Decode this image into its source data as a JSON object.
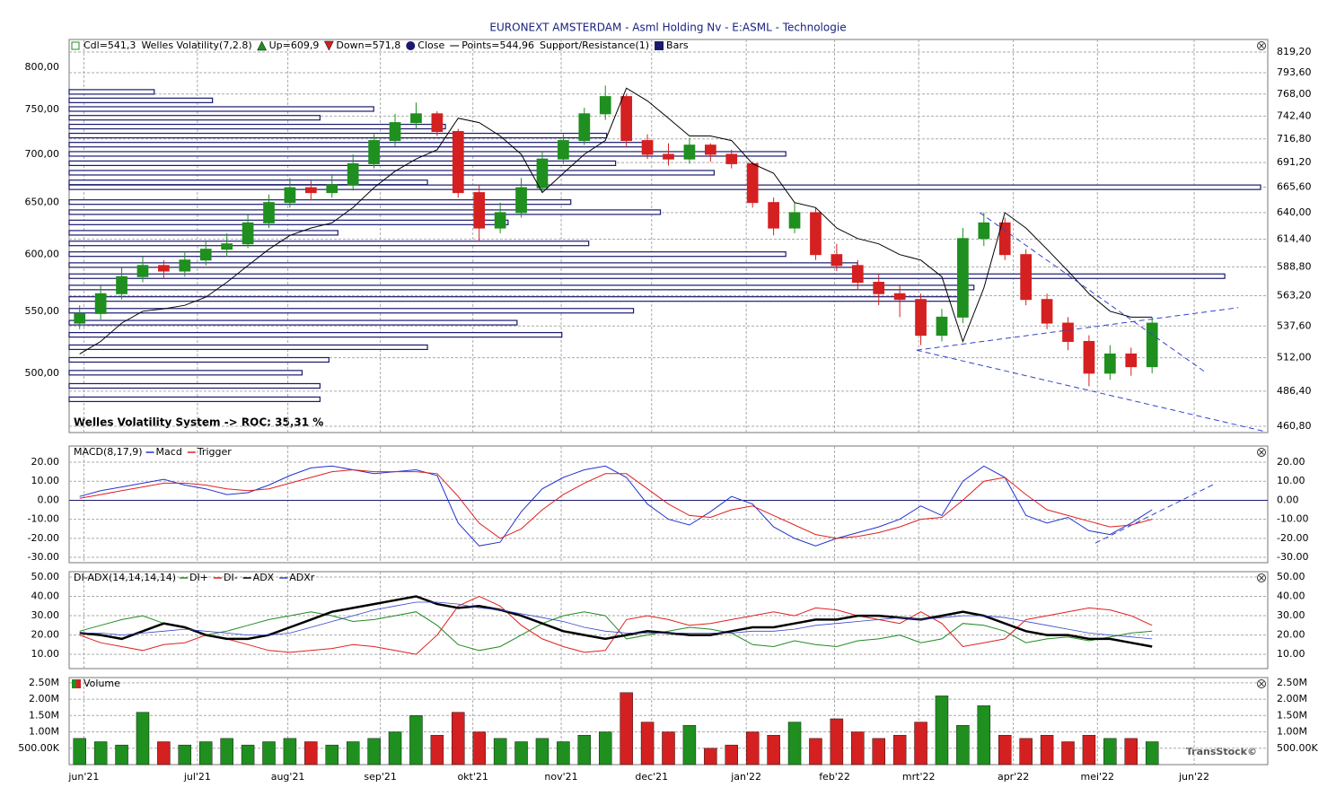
{
  "chart_data": [
    {
      "type": "candlestick",
      "title": "EURONEXT AMSTERDAM - Asml Holding Nv - E:ASML - Technologie",
      "legend": [
        {
          "label": "Cdl=541,3",
          "symbol": "candle"
        },
        {
          "label": "Welles Volatility(7,2.8)",
          "symbol": "none"
        },
        {
          "label": "Up=609,9",
          "symbol": "up"
        },
        {
          "label": "Down=571,8",
          "symbol": "down"
        },
        {
          "label": "Close",
          "symbol": "circle"
        },
        {
          "label": "Points=544,96",
          "symbol": "line"
        },
        {
          "label": "Support/Resistance(1)",
          "symbol": "none"
        },
        {
          "label": "Bars",
          "symbol": "square"
        }
      ],
      "annotation": "Welles Volatility System -> ROC: 35,31 %",
      "watermark": "TransStock©",
      "log": true,
      "grid": true,
      "up_color": "#1f8f1f",
      "down_color": "#d42020",
      "xlim": [
        -0.5,
        56.5
      ],
      "xticks": [
        {
          "value": 0.2,
          "label": "jun'21"
        },
        {
          "value": 5.6,
          "label": "jul'21"
        },
        {
          "value": 9.9,
          "label": "aug'21"
        },
        {
          "value": 14.3,
          "label": "sep'21"
        },
        {
          "value": 18.7,
          "label": "okt'21"
        },
        {
          "value": 22.9,
          "label": "nov'21"
        },
        {
          "value": 27.2,
          "label": "dec'21"
        },
        {
          "value": 31.7,
          "label": "jan'22"
        },
        {
          "value": 35.9,
          "label": "feb'22"
        },
        {
          "value": 39.9,
          "label": "mrt'22"
        },
        {
          "value": 44.4,
          "label": "apr'22"
        },
        {
          "value": 48.4,
          "label": "mei'22"
        },
        {
          "value": 53.0,
          "label": "jun'22"
        }
      ],
      "ylim": [
        460.8,
        819.2
      ],
      "yticks": [
        {
          "value": 500,
          "label": "500,00"
        },
        {
          "value": 550,
          "label": "550,00"
        },
        {
          "value": 600,
          "label": "600,00"
        },
        {
          "value": 650,
          "label": "650,00"
        },
        {
          "value": 700,
          "label": "700,00"
        },
        {
          "value": 750,
          "label": "750,00"
        },
        {
          "value": 800,
          "label": "800,00"
        }
      ],
      "y2lim": [
        460.8,
        819.2
      ],
      "y2ticks": [
        {
          "value": 460.8,
          "label": "460,80"
        },
        {
          "value": 486.4,
          "label": "486,40"
        },
        {
          "value": 512,
          "label": "512,00"
        },
        {
          "value": 537.6,
          "label": "537,60"
        },
        {
          "value": 563.2,
          "label": "563,20"
        },
        {
          "value": 588.8,
          "label": "588,80"
        },
        {
          "value": 614.4,
          "label": "614,40"
        },
        {
          "value": 640,
          "label": "640,00"
        },
        {
          "value": 665.6,
          "label": "665,60"
        },
        {
          "value": 691.2,
          "label": "691,20"
        },
        {
          "value": 716.8,
          "label": "716,80"
        },
        {
          "value": 742.4,
          "label": "742,40"
        },
        {
          "value": 768,
          "label": "768,00"
        },
        {
          "value": 793.6,
          "label": "793,60"
        },
        {
          "value": 819.2,
          "label": "819,20"
        }
      ],
      "open": [
        540,
        548,
        565,
        580,
        590,
        585,
        595,
        605,
        610,
        630,
        650,
        665,
        660,
        668,
        690,
        715,
        735,
        745,
        725,
        660,
        625,
        640,
        665,
        695,
        715,
        745,
        765,
        715,
        700,
        695,
        710,
        700,
        690,
        650,
        625,
        640,
        600,
        590,
        575,
        565,
        560,
        530,
        545,
        615,
        630,
        600,
        560,
        540,
        525,
        500,
        515,
        505
      ],
      "high": [
        555,
        572,
        588,
        598,
        595,
        603,
        612,
        620,
        638,
        658,
        675,
        672,
        678,
        700,
        722,
        745,
        758,
        748,
        728,
        668,
        650,
        675,
        703,
        722,
        752,
        778,
        768,
        722,
        712,
        718,
        712,
        705,
        692,
        655,
        650,
        645,
        610,
        595,
        582,
        572,
        565,
        552,
        625,
        640,
        635,
        605,
        565,
        545,
        530,
        522,
        520,
        545
      ],
      "low": [
        535,
        543,
        560,
        575,
        578,
        580,
        590,
        598,
        606,
        625,
        645,
        652,
        655,
        662,
        685,
        708,
        728,
        720,
        655,
        612,
        620,
        635,
        660,
        690,
        710,
        738,
        708,
        695,
        688,
        690,
        692,
        685,
        645,
        618,
        620,
        595,
        585,
        568,
        555,
        545,
        522,
        525,
        540,
        608,
        595,
        555,
        535,
        518,
        490,
        495,
        498,
        500
      ],
      "close": [
        548,
        565,
        580,
        590,
        585,
        595,
        605,
        610,
        630,
        650,
        665,
        660,
        668,
        690,
        715,
        735,
        745,
        725,
        660,
        625,
        640,
        665,
        695,
        715,
        745,
        765,
        715,
        700,
        695,
        710,
        700,
        690,
        650,
        625,
        640,
        600,
        590,
        575,
        565,
        560,
        530,
        545,
        615,
        630,
        600,
        560,
        540,
        525,
        500,
        515,
        505,
        540
      ],
      "points": {
        "color": "#000000",
        "values": [
          515,
          525,
          540,
          550,
          552,
          555,
          562,
          575,
          590,
          605,
          618,
          625,
          630,
          645,
          665,
          682,
          695,
          705,
          740,
          735,
          720,
          700,
          660,
          680,
          700,
          715,
          775,
          760,
          740,
          720,
          720,
          715,
          690,
          680,
          650,
          645,
          625,
          615,
          610,
          600,
          595,
          580,
          525,
          570,
          640,
          625,
          605,
          585,
          565,
          550,
          545,
          545
        ]
      },
      "volume_profile": {
        "color": "#1a1a6e",
        "levels": [
          770,
          760,
          750,
          740,
          730,
          720,
          710,
          700,
          690,
          680,
          670,
          665,
          650,
          640,
          630,
          620,
          610,
          600,
          590,
          580,
          570,
          560,
          550,
          540,
          530,
          520,
          510,
          500,
          490,
          480
        ],
        "values": [
          95,
          160,
          340,
          280,
          420,
          600,
          650,
          800,
          610,
          720,
          400,
          1330,
          560,
          660,
          490,
          300,
          580,
          800,
          880,
          1290,
          1010,
          1000,
          630,
          500,
          550,
          400,
          290,
          260,
          280,
          280
        ]
      },
      "trendlines": {
        "color": "#3344cc",
        "lines": [
          [
            39.8,
            518,
            55.1,
            553
          ],
          [
            39.8,
            518,
            56.4,
            457
          ],
          [
            42.8,
            640,
            53.6,
            500
          ]
        ]
      }
    },
    {
      "type": "line",
      "label": "MACD(8,17,9)",
      "grid": true,
      "zero_color": "#1a1a6e",
      "ylim": [
        -32.8,
        28.5
      ],
      "yticks": [
        {
          "value": 20,
          "label": "20.00"
        },
        {
          "value": 10,
          "label": "10.00"
        },
        {
          "value": 0,
          "label": "0.00"
        },
        {
          "value": -10,
          "label": "-10.00"
        },
        {
          "value": -20,
          "label": "-20.00"
        },
        {
          "value": -30,
          "label": "-30.00"
        }
      ],
      "series": [
        {
          "name": "Macd",
          "color": "#2233cc",
          "values": [
            2,
            5,
            7,
            9,
            11,
            8,
            6,
            3,
            4,
            8,
            13,
            17,
            18,
            16,
            14,
            15,
            16,
            13,
            -12,
            -24,
            -22,
            -6,
            6,
            12,
            16,
            18,
            12,
            -2,
            -10,
            -13,
            -6,
            2,
            -2,
            -14,
            -20,
            -24,
            -20,
            -17,
            -14,
            -10,
            -3,
            -8,
            10,
            18,
            12,
            -8,
            -12,
            -9,
            -16,
            -18,
            -12,
            -5
          ]
        },
        {
          "name": "Trigger",
          "color": "#e02020",
          "values": [
            1,
            3,
            5,
            7,
            9,
            9,
            8,
            6,
            5,
            6,
            9,
            12,
            15,
            16,
            15,
            15,
            15,
            14,
            2,
            -12,
            -20,
            -15,
            -5,
            3,
            9,
            14,
            14,
            6,
            -2,
            -8,
            -9,
            -5,
            -3,
            -8,
            -13,
            -18,
            -20,
            -19,
            -17,
            -14,
            -10,
            -9,
            0,
            10,
            12,
            3,
            -5,
            -8,
            -11,
            -14,
            -13,
            -10
          ]
        }
      ],
      "trendlines": {
        "color": "#3344cc",
        "lines": [
          [
            48.3,
            -22.5,
            53.9,
            8.2
          ]
        ]
      }
    },
    {
      "type": "line",
      "label": "DI-ADX(14,14,14,14)",
      "grid": true,
      "ylim": [
        2.6,
        52.8
      ],
      "yticks": [
        {
          "value": 50,
          "label": "50.00"
        },
        {
          "value": 40,
          "label": "40.00"
        },
        {
          "value": 30,
          "label": "30.00"
        },
        {
          "value": 20,
          "label": "20.00"
        },
        {
          "value": 10,
          "label": "10.00"
        }
      ],
      "series": [
        {
          "name": "DI+",
          "color": "#228b22",
          "width": 1,
          "values": [
            22,
            25,
            28,
            30,
            26,
            24,
            20,
            22,
            25,
            28,
            30,
            32,
            30,
            27,
            28,
            30,
            32,
            25,
            15,
            12,
            14,
            20,
            26,
            30,
            32,
            30,
            18,
            20,
            22,
            24,
            23,
            21,
            15,
            14,
            17,
            15,
            14,
            17,
            18,
            20,
            16,
            18,
            26,
            25,
            22,
            16,
            18,
            19,
            17,
            19,
            21,
            22
          ]
        },
        {
          "name": "DI-",
          "color": "#e02020",
          "width": 1,
          "values": [
            20,
            16,
            14,
            12,
            15,
            16,
            20,
            18,
            15,
            12,
            11,
            12,
            13,
            15,
            14,
            12,
            10,
            20,
            35,
            40,
            35,
            25,
            18,
            14,
            11,
            12,
            28,
            30,
            28,
            25,
            26,
            28,
            30,
            32,
            30,
            34,
            33,
            30,
            28,
            26,
            32,
            26,
            14,
            16,
            18,
            28,
            30,
            32,
            34,
            33,
            30,
            25
          ]
        },
        {
          "name": "ADX",
          "color": "#000000",
          "width": 2.5,
          "values": [
            21,
            20,
            18,
            22,
            26,
            24,
            20,
            18,
            18,
            20,
            24,
            28,
            32,
            34,
            36,
            38,
            40,
            36,
            34,
            35,
            33,
            30,
            26,
            22,
            20,
            18,
            20,
            22,
            21,
            20,
            20,
            22,
            24,
            24,
            26,
            28,
            28,
            30,
            30,
            29,
            28,
            30,
            32,
            30,
            26,
            22,
            20,
            20,
            18,
            18,
            16,
            14
          ]
        },
        {
          "name": "ADXr",
          "color": "#3344cc",
          "width": 0.8,
          "values": [
            21,
            21,
            20,
            21,
            22,
            23,
            22,
            21,
            20,
            20,
            21,
            24,
            27,
            30,
            33,
            35,
            37,
            37,
            36,
            34,
            33,
            31,
            29,
            27,
            24,
            22,
            21,
            21,
            21,
            21,
            21,
            21,
            22,
            22,
            23,
            25,
            26,
            27,
            28,
            29,
            28,
            29,
            30,
            30,
            29,
            27,
            25,
            23,
            21,
            20,
            19,
            18
          ]
        }
      ]
    },
    {
      "type": "volume",
      "label": "Volume",
      "grid": true,
      "ylim": [
        0,
        2660000
      ],
      "yticks": [
        {
          "value": 2500000,
          "label": "2.50M"
        },
        {
          "value": 2000000,
          "label": "2.00M"
        },
        {
          "value": 1500000,
          "label": "1.50M"
        },
        {
          "value": 1000000,
          "label": "1.00M"
        },
        {
          "value": 500000,
          "label": "500.00K"
        }
      ],
      "values": [
        800000,
        700000,
        600000,
        1600000,
        700000,
        600000,
        700000,
        800000,
        600000,
        700000,
        800000,
        700000,
        600000,
        700000,
        800000,
        1000000,
        1500000,
        900000,
        1600000,
        1000000,
        800000,
        700000,
        800000,
        700000,
        900000,
        1000000,
        2200000,
        1300000,
        1000000,
        1200000,
        500000,
        600000,
        1000000,
        900000,
        1300000,
        800000,
        1400000,
        1000000,
        800000,
        900000,
        1300000,
        2100000,
        1200000,
        1800000,
        900000,
        800000,
        900000,
        700000,
        900000,
        800000,
        800000,
        700000
      ]
    }
  ]
}
